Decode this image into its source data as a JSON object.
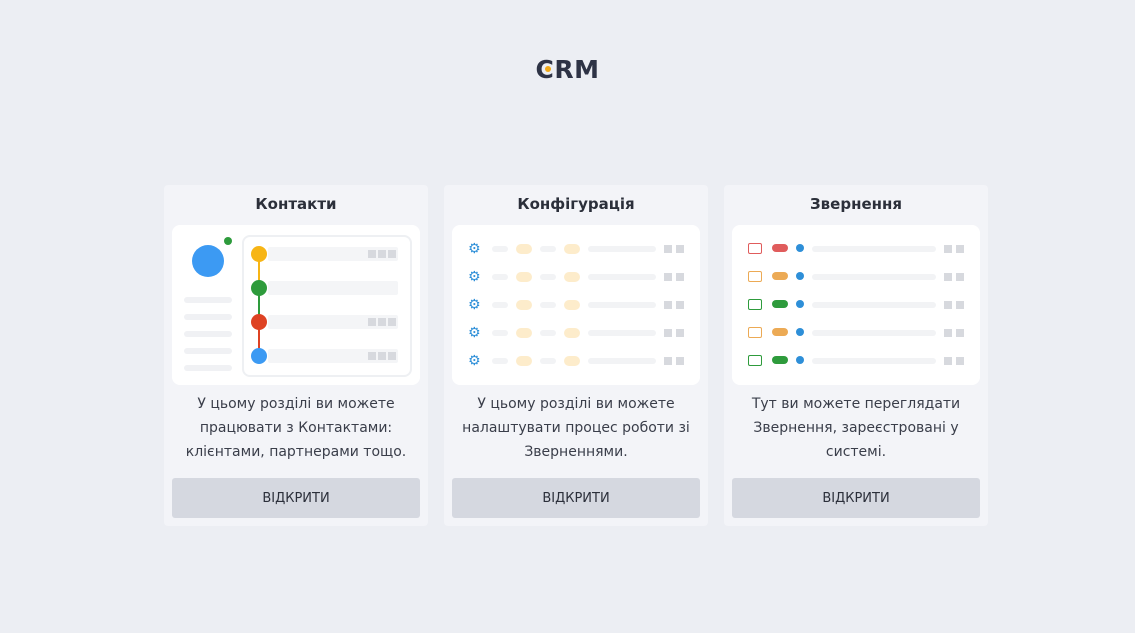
{
  "logo": {
    "letter_c": "C",
    "rest": "RM"
  },
  "colors": {
    "accent": "#f0a818",
    "gear": "#2e8fd8",
    "red": "#e05c5c",
    "orange": "#ecaa55",
    "green": "#2e9b3c",
    "blue_dot": "#2e8fd8"
  },
  "cards": [
    {
      "title": "Контакти",
      "description": "У цьому розділі ви можете працювати з Контактами: клієнтами, партнерами тощо.",
      "button_label": "ВІДКРИТИ"
    },
    {
      "title": "Конфігурація",
      "description": "У цьому розділі ви можете налаштувати процес роботи зі Зверненнями.",
      "button_label": "ВІДКРИТИ"
    },
    {
      "title": "Звернення",
      "description": "Тут ви можете переглядати Звернення, зареєстровані у системі.",
      "button_label": "ВІДКРИТИ"
    }
  ],
  "illustrations": {
    "contacts_timeline_dots": [
      "#f7b515",
      "#2e9b3c",
      "#de4223",
      "#3c9af3"
    ],
    "config_gear_icon": "⚙",
    "appeals_statuses": [
      "red",
      "orange",
      "green",
      "orange",
      "green"
    ]
  }
}
